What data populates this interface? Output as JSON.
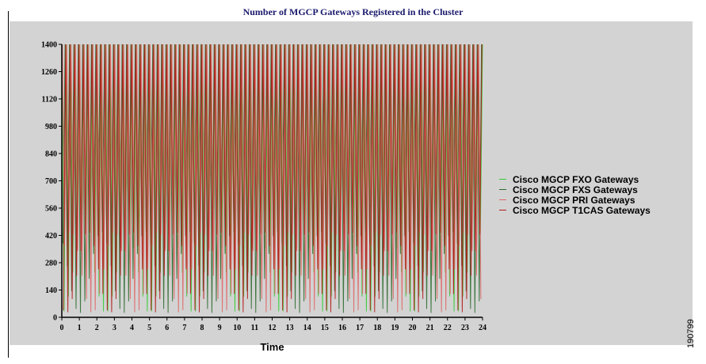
{
  "chart_data": {
    "type": "line",
    "title": "Number of MGCP Gateways Registered in the Cluster",
    "xlabel": "Time",
    "ylabel": "",
    "xlim": [
      0,
      24
    ],
    "ylim": [
      0,
      1400
    ],
    "xticks": [
      0,
      1,
      2,
      3,
      4,
      5,
      6,
      7,
      8,
      9,
      10,
      11,
      12,
      13,
      14,
      15,
      16,
      17,
      18,
      19,
      20,
      21,
      22,
      23,
      24
    ],
    "yticks": [
      0,
      140,
      280,
      420,
      560,
      700,
      840,
      980,
      1120,
      1260,
      1400
    ],
    "grid": false,
    "legend_position": "right",
    "oscillation": {
      "period_hours": 0.25,
      "max": 1400,
      "min": 0,
      "envelope_low_min": 20,
      "envelope_low_max": 440,
      "envelope_period_hours": 2.5
    },
    "series": [
      {
        "name": "Cisco MGCP FXO Gateways",
        "color": "#33cc33",
        "phase": 0.0
      },
      {
        "name": "Cisco MGCP FXS Gateways",
        "color": "#2e6b2e",
        "phase": 0.5
      },
      {
        "name": "Cisco MGCP PRI Gateways",
        "color": "#e06666",
        "phase": 0.25
      },
      {
        "name": "Cisco MGCP T1CAS Gateways",
        "color": "#b31b1b",
        "phase": 0.75
      }
    ]
  },
  "image_id": "190799"
}
